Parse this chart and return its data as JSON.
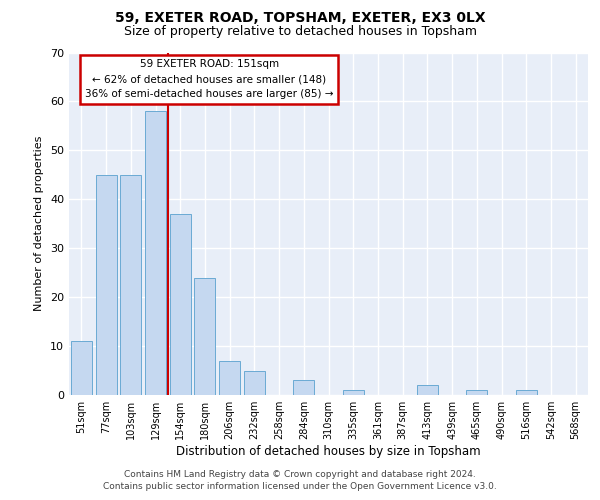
{
  "title1": "59, EXETER ROAD, TOPSHAM, EXETER, EX3 0LX",
  "title2": "Size of property relative to detached houses in Topsham",
  "xlabel": "Distribution of detached houses by size in Topsham",
  "ylabel": "Number of detached properties",
  "categories": [
    "51sqm",
    "77sqm",
    "103sqm",
    "129sqm",
    "154sqm",
    "180sqm",
    "206sqm",
    "232sqm",
    "258sqm",
    "284sqm",
    "310sqm",
    "335sqm",
    "361sqm",
    "387sqm",
    "413sqm",
    "439sqm",
    "465sqm",
    "490sqm",
    "516sqm",
    "542sqm",
    "568sqm"
  ],
  "values": [
    11,
    45,
    45,
    58,
    37,
    24,
    7,
    5,
    0,
    3,
    0,
    1,
    0,
    0,
    2,
    0,
    1,
    0,
    1,
    0,
    0
  ],
  "bar_color": "#c5d8f0",
  "bar_edge_color": "#6aaad4",
  "annotation_title": "59 EXETER ROAD: 151sqm",
  "annotation_line1": "← 62% of detached houses are smaller (148)",
  "annotation_line2": "36% of semi-detached houses are larger (85) →",
  "annotation_box_edge_color": "#cc0000",
  "vline_color": "#cc0000",
  "vline_x_index": 3.5,
  "ylim": [
    0,
    70
  ],
  "yticks": [
    0,
    10,
    20,
    30,
    40,
    50,
    60,
    70
  ],
  "footer1": "Contains HM Land Registry data © Crown copyright and database right 2024.",
  "footer2": "Contains public sector information licensed under the Open Government Licence v3.0.",
  "bg_color": "#ffffff",
  "plot_bg_color": "#e8eef8",
  "grid_color": "#ffffff"
}
